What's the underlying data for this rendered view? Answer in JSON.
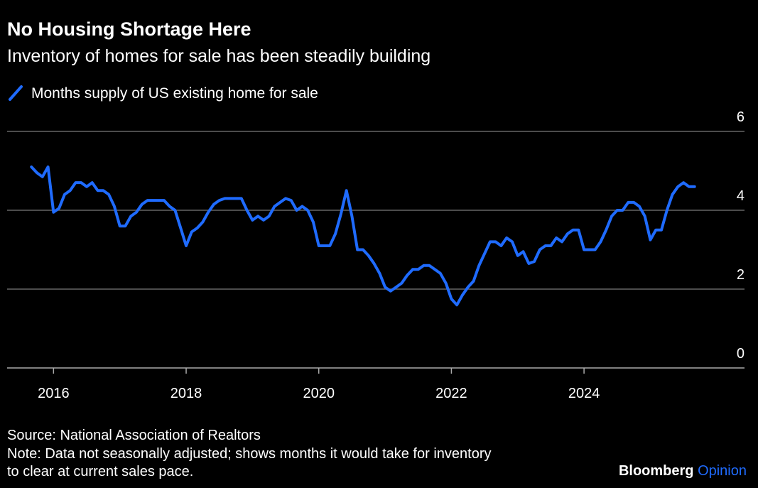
{
  "chart_data": {
    "type": "line",
    "title": "No Housing Shortage Here",
    "subtitle": "Inventory of homes for sale has been steadily building",
    "x": [
      2015.667,
      2015.75,
      2015.833,
      2015.917,
      2016.0,
      2016.083,
      2016.167,
      2016.25,
      2016.333,
      2016.417,
      2016.5,
      2016.583,
      2016.667,
      2016.75,
      2016.833,
      2016.917,
      2017.0,
      2017.083,
      2017.167,
      2017.25,
      2017.333,
      2017.417,
      2017.5,
      2017.583,
      2017.667,
      2017.75,
      2017.833,
      2017.917,
      2018.0,
      2018.083,
      2018.167,
      2018.25,
      2018.333,
      2018.417,
      2018.5,
      2018.583,
      2018.667,
      2018.75,
      2018.833,
      2018.917,
      2019.0,
      2019.083,
      2019.167,
      2019.25,
      2019.333,
      2019.417,
      2019.5,
      2019.583,
      2019.667,
      2019.75,
      2019.833,
      2019.917,
      2020.0,
      2020.083,
      2020.167,
      2020.25,
      2020.333,
      2020.417,
      2020.5,
      2020.583,
      2020.667,
      2020.75,
      2020.833,
      2020.917,
      2021.0,
      2021.083,
      2021.167,
      2021.25,
      2021.333,
      2021.417,
      2021.5,
      2021.583,
      2021.667,
      2021.75,
      2021.833,
      2021.917,
      2022.0,
      2022.083,
      2022.167,
      2022.25,
      2022.333,
      2022.417,
      2022.5,
      2022.583,
      2022.667,
      2022.75,
      2022.833,
      2022.917,
      2023.0,
      2023.083,
      2023.167,
      2023.25,
      2023.333,
      2023.417,
      2023.5,
      2023.583,
      2023.667,
      2023.75,
      2023.833,
      2023.917,
      2024.0,
      2024.083,
      2024.167,
      2024.25,
      2024.333,
      2024.417,
      2024.5,
      2024.583,
      2024.667,
      2024.75,
      2024.833,
      2024.917,
      2025.0,
      2025.083,
      2025.167,
      2025.25,
      2025.333,
      2025.417,
      2025.5,
      2025.583,
      2025.667
    ],
    "series": [
      {
        "name": "Months supply of US existing home for sale",
        "color": "#1f6bff",
        "values": [
          5.1,
          4.95,
          4.85,
          5.1,
          3.95,
          4.05,
          4.4,
          4.5,
          4.7,
          4.7,
          4.6,
          4.7,
          4.5,
          4.5,
          4.4,
          4.1,
          3.6,
          3.6,
          3.85,
          3.95,
          4.15,
          4.25,
          4.25,
          4.25,
          4.25,
          4.1,
          4.0,
          3.55,
          3.1,
          3.45,
          3.55,
          3.7,
          3.95,
          4.15,
          4.25,
          4.3,
          4.3,
          4.3,
          4.3,
          4.0,
          3.75,
          3.85,
          3.75,
          3.85,
          4.1,
          4.2,
          4.3,
          4.25,
          4.0,
          4.1,
          4.0,
          3.7,
          3.1,
          3.1,
          3.1,
          3.4,
          3.9,
          4.5,
          3.85,
          3.0,
          3.0,
          2.85,
          2.65,
          2.4,
          2.05,
          1.95,
          2.05,
          2.15,
          2.35,
          2.5,
          2.5,
          2.6,
          2.6,
          2.5,
          2.4,
          2.15,
          1.75,
          1.6,
          1.85,
          2.05,
          2.2,
          2.6,
          2.9,
          3.2,
          3.2,
          3.1,
          3.3,
          3.2,
          2.85,
          2.95,
          2.65,
          2.7,
          3.0,
          3.1,
          3.1,
          3.3,
          3.2,
          3.4,
          3.5,
          3.5,
          3.0,
          3.0,
          3.0,
          3.2,
          3.5,
          3.85,
          4.0,
          4.0,
          4.2,
          4.2,
          4.1,
          3.85,
          3.25,
          3.5,
          3.5,
          4.0,
          4.4,
          4.6,
          4.7,
          4.6,
          4.6
        ]
      }
    ],
    "xlim": [
      2015.3,
      2026.42
    ],
    "xticks": [
      2016,
      2018,
      2020,
      2022,
      2024
    ],
    "ylim": [
      0,
      6
    ],
    "yticks": [
      0,
      2,
      4,
      6
    ],
    "grid": true,
    "source": "Source: National Association of Realtors",
    "note": [
      "Note: Data not seasonally adjusted; shows months it would take for inventory",
      "to clear at current sales pace."
    ],
    "brand": [
      "Bloomberg",
      "Opinion"
    ]
  }
}
